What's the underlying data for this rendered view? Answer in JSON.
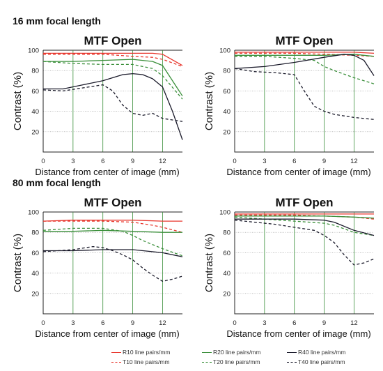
{
  "sections": [
    {
      "title": "16 mm focal length"
    },
    {
      "title": "80 mm focal length"
    }
  ],
  "colors": {
    "red": "#e8362d",
    "green": "#3a8f3a",
    "black": "#1a1a2a",
    "grid": "#3a8f3a"
  },
  "chart_data": [
    {
      "type": "line",
      "title": "MTF Open",
      "xlabel": "Distance from center of image (mm)",
      "ylabel": "Contrast (%)",
      "xlim": [
        0,
        14
      ],
      "ylim": [
        0,
        100
      ],
      "xticks": [
        "0",
        "3",
        "6",
        "9",
        "12"
      ],
      "yticks": [
        "20",
        "40",
        "60",
        "80",
        "100"
      ],
      "series": [
        {
          "key": "R10",
          "x": [
            0,
            3,
            6,
            9,
            11,
            12,
            14
          ],
          "y": [
            97,
            97,
            97,
            97,
            97,
            96,
            85
          ]
        },
        {
          "key": "T10",
          "x": [
            0,
            3,
            6,
            9,
            11,
            12,
            14
          ],
          "y": [
            96,
            96,
            96,
            94,
            93,
            91,
            84
          ]
        },
        {
          "key": "R20",
          "x": [
            0,
            3,
            6,
            9,
            11,
            12,
            14
          ],
          "y": [
            89,
            89,
            90,
            91,
            89,
            85,
            55
          ]
        },
        {
          "key": "T20",
          "x": [
            0,
            3,
            6,
            9,
            11,
            12,
            14
          ],
          "y": [
            89,
            87,
            86,
            86,
            82,
            75,
            52
          ]
        },
        {
          "key": "R40",
          "x": [
            0,
            2,
            4,
            6,
            8,
            9,
            10,
            11,
            12,
            13,
            14
          ],
          "y": [
            62,
            62,
            66,
            70,
            76,
            77,
            76,
            72,
            64,
            40,
            12
          ]
        },
        {
          "key": "T40",
          "x": [
            0,
            2,
            4,
            6,
            7,
            8,
            9,
            10,
            11,
            12,
            14
          ],
          "y": [
            61,
            60,
            63,
            66,
            60,
            46,
            38,
            36,
            38,
            33,
            30
          ]
        }
      ]
    },
    {
      "type": "line",
      "title": "MTF Open",
      "xlabel": "Distance from center of image (mm)",
      "ylabel": "Contrast (%)",
      "xlim": [
        0,
        14
      ],
      "ylim": [
        0,
        100
      ],
      "xticks": [
        "0",
        "3",
        "6",
        "9",
        "12"
      ],
      "yticks": [
        "20",
        "40",
        "60",
        "80",
        "100"
      ],
      "series": [
        {
          "key": "R10",
          "x": [
            0,
            3,
            6,
            9,
            12,
            14
          ],
          "y": [
            98,
            98,
            98,
            98,
            98,
            97
          ]
        },
        {
          "key": "T10",
          "x": [
            0,
            3,
            6,
            9,
            12,
            14
          ],
          "y": [
            97,
            97,
            97,
            96,
            95,
            94
          ]
        },
        {
          "key": "R20",
          "x": [
            0,
            3,
            6,
            9,
            12,
            14
          ],
          "y": [
            95,
            95,
            95,
            95,
            96,
            94
          ]
        },
        {
          "key": "T20",
          "x": [
            0,
            3,
            6,
            8,
            9,
            10,
            12,
            14
          ],
          "y": [
            94,
            94,
            92,
            90,
            84,
            80,
            73,
            67
          ]
        },
        {
          "key": "R40",
          "x": [
            0,
            3,
            6,
            9,
            11,
            12,
            13,
            14
          ],
          "y": [
            82,
            84,
            88,
            93,
            96,
            95,
            90,
            75
          ]
        },
        {
          "key": "T40",
          "x": [
            0,
            2,
            4,
            6,
            7,
            8,
            9,
            10,
            12,
            14
          ],
          "y": [
            82,
            79,
            78,
            76,
            60,
            45,
            40,
            37,
            34,
            32
          ]
        }
      ]
    },
    {
      "type": "line",
      "title": "MTF Open",
      "xlabel": "Distance from center of image (mm)",
      "ylabel": "Contrast (%)",
      "xlim": [
        0,
        14
      ],
      "ylim": [
        0,
        100
      ],
      "xticks": [
        "0",
        "3",
        "6",
        "9",
        "12"
      ],
      "yticks": [
        "20",
        "40",
        "60",
        "80",
        "100"
      ],
      "series": [
        {
          "key": "R10",
          "x": [
            0,
            3,
            6,
            9,
            12,
            14
          ],
          "y": [
            91,
            92,
            92,
            92,
            91,
            91
          ]
        },
        {
          "key": "T10",
          "x": [
            0,
            3,
            6,
            9,
            11,
            12,
            14
          ],
          "y": [
            91,
            91,
            91,
            90,
            87,
            85,
            80
          ]
        },
        {
          "key": "R20",
          "x": [
            0,
            3,
            6,
            9,
            12,
            14
          ],
          "y": [
            81,
            81,
            82,
            81,
            80,
            80
          ]
        },
        {
          "key": "T20",
          "x": [
            0,
            3,
            6,
            8,
            9,
            10,
            12,
            14
          ],
          "y": [
            82,
            84,
            84,
            81,
            77,
            72,
            64,
            57
          ]
        },
        {
          "key": "R40",
          "x": [
            0,
            3,
            6,
            9,
            12,
            14
          ],
          "y": [
            62,
            62,
            63,
            63,
            60,
            56
          ]
        },
        {
          "key": "T40",
          "x": [
            0,
            3,
            5,
            6,
            7,
            8,
            9,
            10,
            11,
            12,
            13,
            14
          ],
          "y": [
            61,
            63,
            66,
            65,
            62,
            58,
            53,
            45,
            38,
            32,
            34,
            37
          ]
        }
      ]
    },
    {
      "type": "line",
      "title": "MTF Open",
      "xlabel": "Distance from center of image (mm)",
      "ylabel": "Contrast (%)",
      "xlim": [
        0,
        14
      ],
      "ylim": [
        0,
        100
      ],
      "xticks": [
        "0",
        "3",
        "6",
        "9",
        "12"
      ],
      "yticks": [
        "20",
        "40",
        "60",
        "80",
        "100"
      ],
      "series": [
        {
          "key": "R10",
          "x": [
            0,
            3,
            6,
            9,
            12,
            14
          ],
          "y": [
            98,
            98,
            98,
            98,
            98,
            98
          ]
        },
        {
          "key": "T10",
          "x": [
            0,
            3,
            6,
            9,
            12,
            14
          ],
          "y": [
            97,
            97,
            97,
            96,
            95,
            93
          ]
        },
        {
          "key": "R20",
          "x": [
            0,
            3,
            6,
            9,
            12,
            14
          ],
          "y": [
            96,
            96,
            96,
            96,
            95,
            94
          ]
        },
        {
          "key": "T20",
          "x": [
            0,
            3,
            6,
            9,
            10,
            12,
            14
          ],
          "y": [
            95,
            93,
            91,
            89,
            87,
            80,
            77
          ]
        },
        {
          "key": "R40",
          "x": [
            0,
            3,
            6,
            9,
            10,
            12,
            14
          ],
          "y": [
            93,
            93,
            93,
            92,
            90,
            82,
            77
          ]
        },
        {
          "key": "T40",
          "x": [
            0,
            2,
            4,
            6,
            8,
            9,
            10,
            11,
            12,
            13,
            14
          ],
          "y": [
            92,
            90,
            88,
            85,
            82,
            77,
            70,
            58,
            48,
            50,
            54
          ]
        }
      ]
    }
  ],
  "legend": [
    {
      "key": "R10",
      "label": "R10 line pairs/mm"
    },
    {
      "key": "T10",
      "label": "T10 line pairs/mm"
    },
    {
      "key": "R20",
      "label": "R20 line pairs/mm"
    },
    {
      "key": "T20",
      "label": "T20 line pairs/mm"
    },
    {
      "key": "R40",
      "label": "R40 line pairs/mm"
    },
    {
      "key": "T40",
      "label": "T40 line pairs/mm"
    }
  ]
}
